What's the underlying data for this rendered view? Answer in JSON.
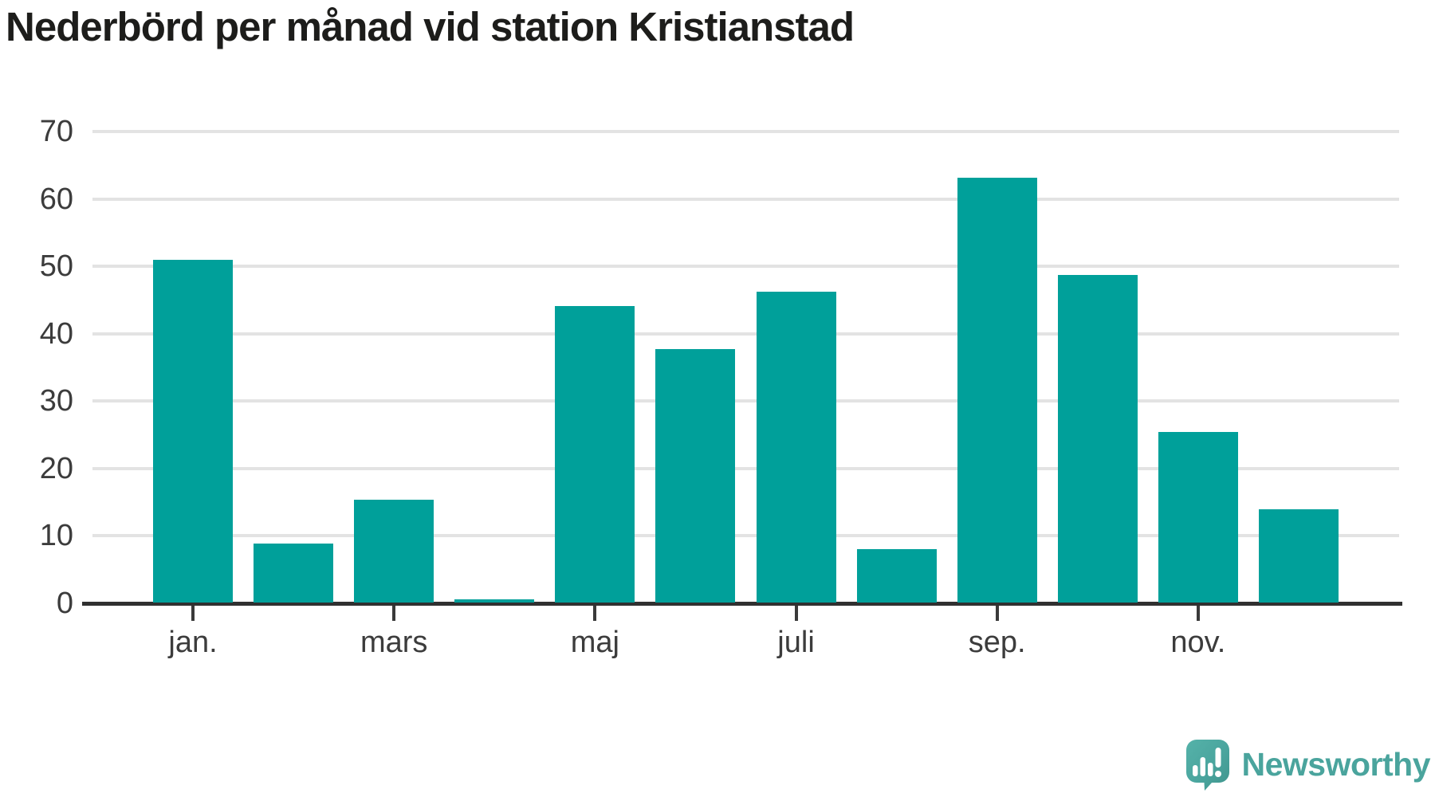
{
  "title": "Nederbörd per månad vid station Kristianstad",
  "chart_data": {
    "type": "bar",
    "title": "Nederbörd per månad vid station Kristianstad",
    "bars": [
      {
        "tick_label": "jan.",
        "value": 50.8
      },
      {
        "value": 8.8
      },
      {
        "tick_label": "mars",
        "value": 15.3
      },
      {
        "value": 0.5
      },
      {
        "tick_label": "maj",
        "value": 44.0
      },
      {
        "value": 37.6
      },
      {
        "tick_label": "juli",
        "value": 46.1
      },
      {
        "value": 7.9
      },
      {
        "tick_label": "sep.",
        "value": 63.0
      },
      {
        "value": 48.6
      },
      {
        "tick_label": "nov.",
        "value": 25.3
      },
      {
        "value": 13.8
      }
    ],
    "yticks": [
      0,
      10,
      20,
      30,
      40,
      50,
      60,
      70
    ],
    "ylim": [
      0,
      70
    ],
    "xlabel": "",
    "ylabel": "",
    "grid": "horizontal",
    "legend": "none",
    "bar_color": "#00a09a"
  },
  "colors": {
    "bar": "#00a09a",
    "title_text": "#1d1d1b",
    "axis_line": "#303030",
    "gridline": "#e3e3e3",
    "tick_text": "#3c3c3c",
    "logo_teal": "#4aa49d"
  },
  "logo": {
    "text": "Newsworthy",
    "icon": "speech-bubble-with-bar-chart-and-exclamation"
  }
}
